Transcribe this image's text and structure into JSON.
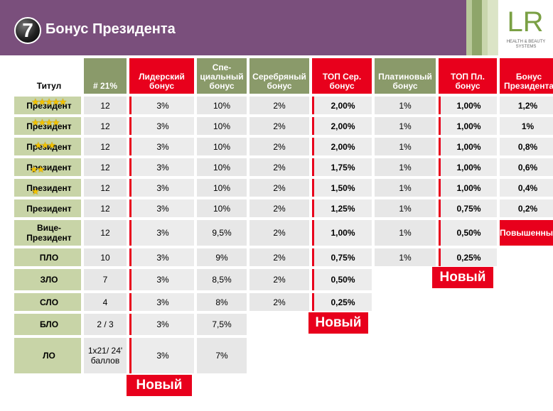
{
  "header": {
    "slide_number": "7",
    "title": "Бонус Президента",
    "logo_text": "LR",
    "logo_tagline": "HEALTH & BEAUTY SYSTEMS"
  },
  "colors": {
    "banner": "#7a4f7c",
    "accent_red": "#e8001c",
    "title_col": "#c8d4a7",
    "header_green": "#8a9a6a"
  },
  "table": {
    "headers": [
      "Титул",
      "# 21%",
      "Лидерский бонус",
      "Спе-циальный бонус",
      "Серебряный бонус",
      "ТОП Сер. бонус",
      "Платиновый бонус",
      "ТОП Пл. бонус",
      "Бонус Президента"
    ],
    "rows": [
      {
        "title": "Президент",
        "stars": 5,
        "cells": [
          "12",
          "3%",
          "10%",
          "2%",
          "2,00%",
          "1%",
          "1,00%",
          "1,2%"
        ]
      },
      {
        "title": "Президент",
        "stars": 4,
        "cells": [
          "12",
          "3%",
          "10%",
          "2%",
          "2,00%",
          "1%",
          "1,00%",
          "1%"
        ]
      },
      {
        "title": "Президент",
        "stars": 3,
        "cells": [
          "12",
          "3%",
          "10%",
          "2%",
          "2,00%",
          "1%",
          "1,00%",
          "0,8%"
        ]
      },
      {
        "title": "Президент",
        "stars": 2,
        "cells": [
          "12",
          "3%",
          "10%",
          "2%",
          "1,75%",
          "1%",
          "1,00%",
          "0,6%"
        ]
      },
      {
        "title": "Президент",
        "stars": 1,
        "cells": [
          "12",
          "3%",
          "10%",
          "2%",
          "1,50%",
          "1%",
          "1,00%",
          "0,4%"
        ]
      },
      {
        "title": "Президент",
        "stars": 0,
        "cells": [
          "12",
          "3%",
          "10%",
          "2%",
          "1,25%",
          "1%",
          "0,75%",
          "0,2%"
        ]
      },
      {
        "title": "Вице-Президент",
        "stars": 0,
        "cells": [
          "12",
          "3%",
          "9,5%",
          "2%",
          "1,00%",
          "1%",
          "0,50%",
          "Повышенный"
        ]
      },
      {
        "title": "ПЛО",
        "stars": 0,
        "cells": [
          "10",
          "3%",
          "9%",
          "2%",
          "0,75%",
          "1%",
          "0,25%",
          ""
        ]
      },
      {
        "title": "ЗЛО",
        "stars": 0,
        "cells": [
          "7",
          "3%",
          "8,5%",
          "2%",
          "0,50%",
          "",
          "",
          ""
        ]
      },
      {
        "title": "СЛО",
        "stars": 0,
        "cells": [
          "4",
          "3%",
          "8%",
          "2%",
          "0,25%",
          "",
          "",
          ""
        ]
      },
      {
        "title": "БЛО",
        "stars": 0,
        "cells": [
          "2 / 3",
          "3%",
          "7,5%",
          "",
          "",
          "",
          "",
          ""
        ]
      },
      {
        "title": "ЛО",
        "stars": 0,
        "cells": [
          "1x21/ 24' баллов",
          "3%",
          "7%",
          "",
          "",
          "",
          "",
          ""
        ]
      }
    ]
  },
  "badges": {
    "new_label": "Новый"
  }
}
